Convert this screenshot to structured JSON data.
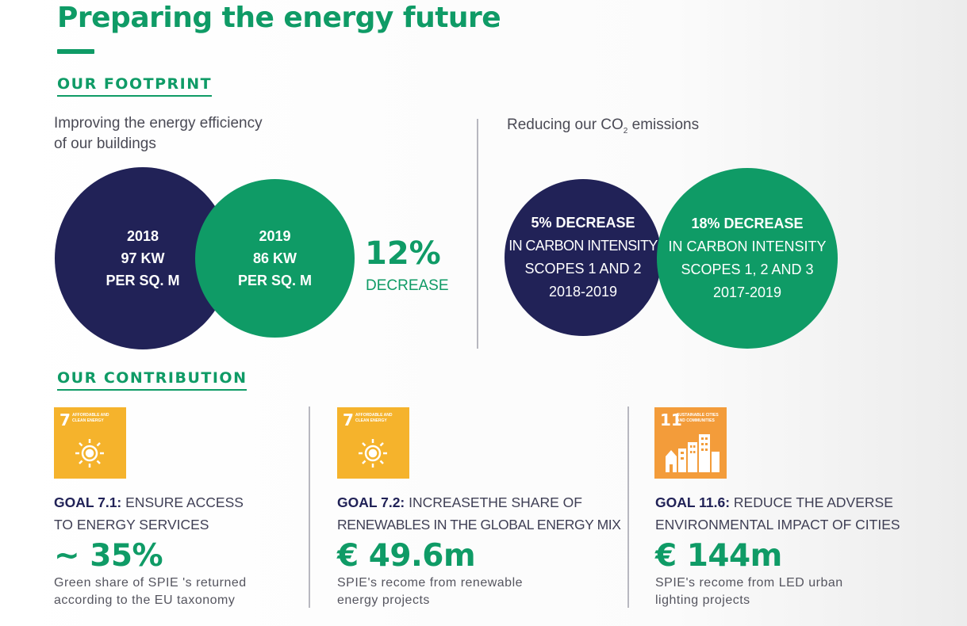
{
  "title": "Preparing the energy future",
  "footprint": {
    "heading": "OUR FOOTPRINT",
    "buildings": {
      "subtitle_line1": "Improving the energy efficiency",
      "subtitle_line2": "of our buildings",
      "circle_2018": [
        "2018",
        "97 KW",
        "PER SQ. M"
      ],
      "circle_2019": [
        "2019",
        "86 KW",
        "PER SQ. M"
      ],
      "decrease_pct": "12%",
      "decrease_label": "DECREASE"
    },
    "emissions": {
      "subtitle_pre": "Reducing our CO",
      "subtitle_sub": "2",
      "subtitle_post": " emissions",
      "circle_a": [
        "5% DECREASE",
        "IN CARBON INTENSITY",
        "SCOPES 1 AND 2",
        "2018-2019"
      ],
      "circle_b": [
        "18% DECREASE",
        "IN CARBON INTENSITY",
        "SCOPES 1, 2 AND 3",
        "2017-2019"
      ]
    }
  },
  "contribution": {
    "heading": "OUR CONTRIBUTION",
    "goals": [
      {
        "tile_number": "7",
        "tile_text": "AFFORDABLE AND CLEAN ENERGY",
        "goal_label": "GOAL 7.1:",
        "goal_line1": " ENSURE ACCESS",
        "goal_line2": "TO ENERGY SERVICES",
        "figure": "~ 35%",
        "desc_line1": "Green share of SPIE 's returned",
        "desc_line2": "according to the EU taxonomy"
      },
      {
        "tile_number": "7",
        "tile_text": "AFFORDABLE AND CLEAN ENERGY",
        "goal_label": "GOAL 7.2:",
        "goal_line1": " INCREASETHE SHARE OF",
        "goal_line2": "RENEWABLES IN THE GLOBAL ENERGY MIX",
        "figure": "€ 49.6m",
        "desc_line1": "SPIE's recome from renewable",
        "desc_line2": "energy projects"
      },
      {
        "tile_number": "11",
        "tile_text": "SUSTAINABLE CITIES AND COMMUNITIES",
        "goal_label": "GOAL 11.6:",
        "goal_line1": " REDUCE THE ADVERSE",
        "goal_line2": "ENVIRONMENTAL IMPACT OF CITIES",
        "figure": "€ 144m",
        "desc_line1": "SPIE's recome from LED urban",
        "desc_line2": "lighting projects"
      }
    ]
  },
  "colors": {
    "green": "#0f9b66",
    "navy": "#212257",
    "sdg_yellow": "#f5b32c",
    "sdg_orange": "#f39c3a"
  }
}
